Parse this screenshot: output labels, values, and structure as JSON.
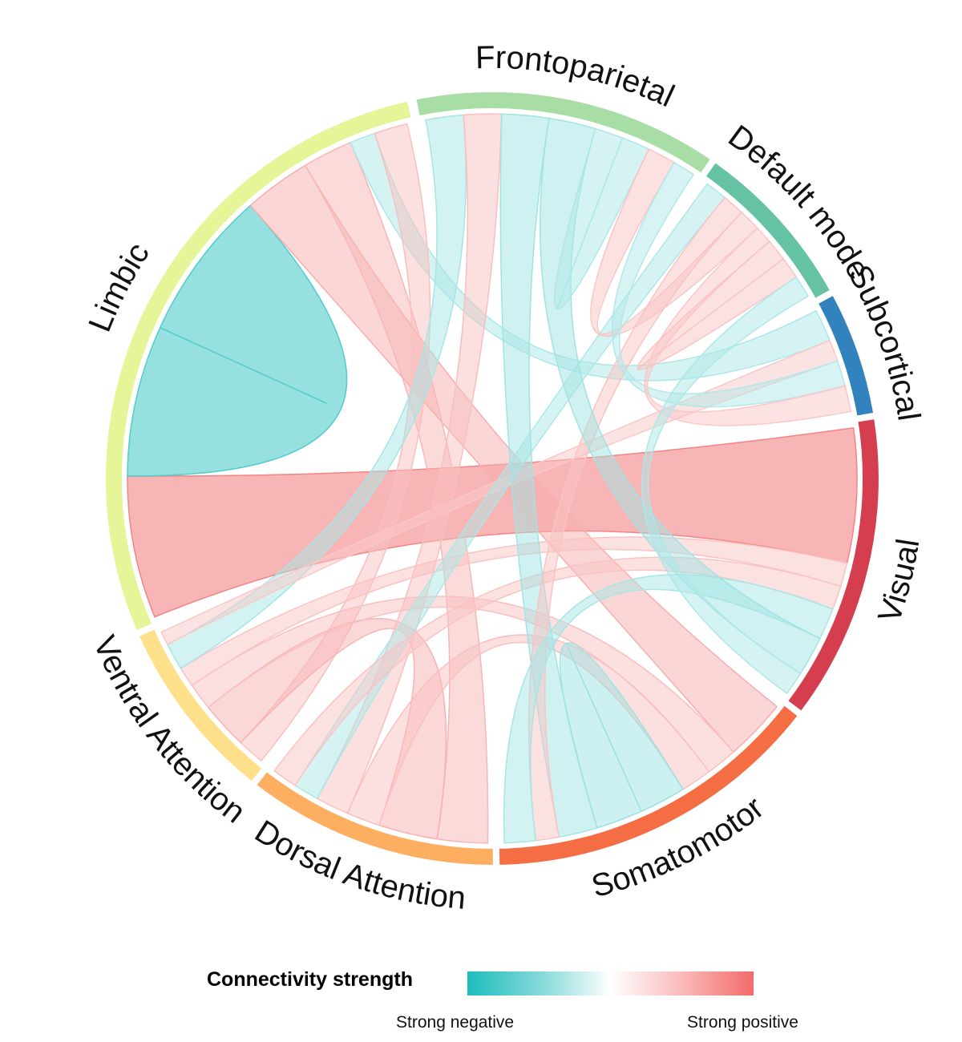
{
  "diagram": {
    "type": "chord",
    "segments": [
      {
        "name": "Frontoparietal",
        "color": "#a8dea6"
      },
      {
        "name": "Default mode",
        "color": "#66c2a4"
      },
      {
        "name": "Subcortical",
        "color": "#3182bd"
      },
      {
        "name": "Visual",
        "color": "#d53e4f"
      },
      {
        "name": "Somatomotor",
        "color": "#f46d43"
      },
      {
        "name": "Dorsal Attention",
        "color": "#fdae61"
      },
      {
        "name": "Ventral Attention",
        "color": "#fee08b"
      },
      {
        "name": "Limbic",
        "color": "#e6f598"
      }
    ],
    "links": [
      {
        "from": "Limbic",
        "to": "Visual",
        "strength": 0.85
      },
      {
        "from": "Limbic",
        "to": "Limbic",
        "strength": -0.9
      },
      {
        "from": "Limbic",
        "to": "Somatomotor",
        "strength": 0.4
      },
      {
        "from": "Limbic",
        "to": "Dorsal Attention",
        "strength": 0.3
      },
      {
        "from": "Limbic",
        "to": "Subcortical",
        "strength": -0.15
      },
      {
        "from": "Limbic",
        "to": "Ventral Attention",
        "strength": 0.2
      },
      {
        "from": "Ventral Attention",
        "to": "Dorsal Attention",
        "strength": 0.35
      },
      {
        "from": "Ventral Attention",
        "to": "Somatomotor",
        "strength": 0.2
      },
      {
        "from": "Ventral Attention",
        "to": "Visual",
        "strength": 0.15
      },
      {
        "from": "Ventral Attention",
        "to": "Frontoparietal",
        "strength": -0.2
      },
      {
        "from": "Ventral Attention",
        "to": "Subcortical",
        "strength": 0.1
      },
      {
        "from": "Dorsal Attention",
        "to": "Somatomotor",
        "strength": 0.2
      },
      {
        "from": "Dorsal Attention",
        "to": "Frontoparietal",
        "strength": 0.2
      },
      {
        "from": "Dorsal Attention",
        "to": "Default mode",
        "strength": -0.15
      },
      {
        "from": "Dorsal Attention",
        "to": "Visual",
        "strength": 0.15
      },
      {
        "from": "Somatomotor",
        "to": "Somatomotor",
        "strength": -0.3
      },
      {
        "from": "Somatomotor",
        "to": "Frontoparietal",
        "strength": -0.25
      },
      {
        "from": "Somatomotor",
        "to": "Default mode",
        "strength": 0.15
      },
      {
        "from": "Somatomotor",
        "to": "Visual",
        "strength": -0.2
      },
      {
        "from": "Frontoparietal",
        "to": "Visual",
        "strength": -0.25
      },
      {
        "from": "Frontoparietal",
        "to": "Frontoparietal",
        "strength": -0.15
      },
      {
        "from": "Frontoparietal",
        "to": "Default mode",
        "strength": 0.15
      },
      {
        "from": "Frontoparietal",
        "to": "Subcortical",
        "strength": -0.12
      },
      {
        "from": "Default mode",
        "to": "Subcortical",
        "strength": 0.12
      },
      {
        "from": "Default mode",
        "to": "Default mode",
        "strength": 0.15
      },
      {
        "from": "Default mode",
        "to": "Visual",
        "strength": -0.15
      }
    ]
  },
  "legend": {
    "title": "Connectivity strength",
    "low_label": "Strong negative",
    "high_label": "Strong positive"
  }
}
